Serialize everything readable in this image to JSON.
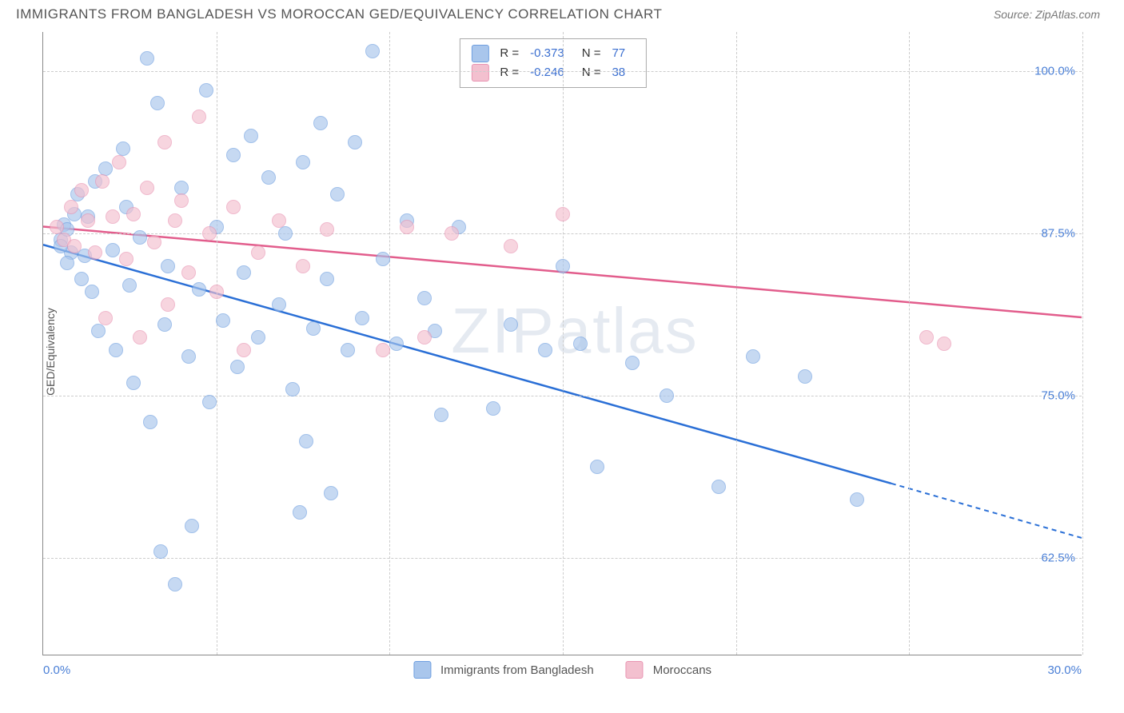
{
  "header": {
    "title": "IMMIGRANTS FROM BANGLADESH VS MOROCCAN GED/EQUIVALENCY CORRELATION CHART",
    "source": "Source: ZipAtlas.com"
  },
  "watermark": {
    "zip": "ZIP",
    "atlas": "atlas"
  },
  "chart": {
    "type": "scatter",
    "xlabel": "",
    "ylabel": "GED/Equivalency",
    "xlim": [
      0,
      30
    ],
    "ylim": [
      55,
      103
    ],
    "y_ticks": [
      62.5,
      75.0,
      87.5,
      100.0
    ],
    "y_tick_labels": [
      "62.5%",
      "75.0%",
      "87.5%",
      "100.0%"
    ],
    "x_ticks": [
      0,
      5,
      10,
      15,
      20,
      25,
      30
    ],
    "x_tick_labels_ends": {
      "left": "0.0%",
      "right": "30.0%"
    },
    "background_color": "#ffffff",
    "grid_color": "#cccccc",
    "axis_color": "#888888",
    "series": [
      {
        "name": "Immigrants from Bangladesh",
        "color_fill": "#a9c6ec",
        "color_stroke": "#6f9fe0",
        "trend_color": "#2a6fd6",
        "R": "-0.373",
        "N": "77",
        "trend": {
          "x1": 0,
          "y1": 86.6,
          "x2_solid": 24.5,
          "y2_solid": 68.2,
          "x2_dash": 30,
          "y2_dash": 64.0
        },
        "points": [
          [
            0.5,
            87.0
          ],
          [
            0.6,
            88.2
          ],
          [
            0.8,
            86.0
          ],
          [
            0.7,
            85.2
          ],
          [
            0.9,
            89.0
          ],
          [
            0.5,
            86.5
          ],
          [
            0.7,
            87.8
          ],
          [
            1.0,
            90.5
          ],
          [
            1.1,
            84.0
          ],
          [
            1.3,
            88.8
          ],
          [
            1.5,
            91.5
          ],
          [
            1.4,
            83.0
          ],
          [
            1.2,
            85.8
          ],
          [
            1.6,
            80.0
          ],
          [
            1.8,
            92.5
          ],
          [
            2.0,
            86.2
          ],
          [
            2.1,
            78.5
          ],
          [
            2.3,
            94.0
          ],
          [
            2.5,
            83.5
          ],
          [
            2.4,
            89.5
          ],
          [
            2.6,
            76.0
          ],
          [
            2.8,
            87.2
          ],
          [
            3.0,
            101.0
          ],
          [
            3.1,
            73.0
          ],
          [
            3.3,
            97.5
          ],
          [
            3.5,
            80.5
          ],
          [
            3.4,
            63.0
          ],
          [
            3.6,
            85.0
          ],
          [
            3.8,
            60.5
          ],
          [
            4.0,
            91.0
          ],
          [
            4.2,
            78.0
          ],
          [
            4.3,
            65.0
          ],
          [
            4.5,
            83.2
          ],
          [
            4.7,
            98.5
          ],
          [
            4.8,
            74.5
          ],
          [
            5.0,
            88.0
          ],
          [
            5.2,
            80.8
          ],
          [
            5.5,
            93.5
          ],
          [
            5.6,
            77.2
          ],
          [
            5.8,
            84.5
          ],
          [
            6.0,
            95.0
          ],
          [
            6.2,
            79.5
          ],
          [
            6.5,
            91.8
          ],
          [
            6.8,
            82.0
          ],
          [
            7.0,
            87.5
          ],
          [
            7.2,
            75.5
          ],
          [
            7.5,
            93.0
          ],
          [
            7.8,
            80.2
          ],
          [
            7.6,
            71.5
          ],
          [
            8.0,
            96.0
          ],
          [
            8.2,
            84.0
          ],
          [
            8.5,
            90.5
          ],
          [
            8.8,
            78.5
          ],
          [
            8.3,
            67.5
          ],
          [
            9.0,
            94.5
          ],
          [
            9.2,
            81.0
          ],
          [
            7.4,
            66.0
          ],
          [
            9.5,
            101.5
          ],
          [
            9.8,
            85.5
          ],
          [
            10.2,
            79.0
          ],
          [
            10.5,
            88.5
          ],
          [
            11.0,
            82.5
          ],
          [
            11.5,
            73.5
          ],
          [
            11.3,
            80.0
          ],
          [
            12.0,
            88.0
          ],
          [
            13.0,
            74.0
          ],
          [
            13.5,
            80.5
          ],
          [
            14.5,
            78.5
          ],
          [
            15.0,
            85.0
          ],
          [
            15.5,
            79.0
          ],
          [
            16.0,
            69.5
          ],
          [
            17.0,
            77.5
          ],
          [
            18.0,
            75.0
          ],
          [
            19.5,
            68.0
          ],
          [
            20.5,
            78.0
          ],
          [
            22.0,
            76.5
          ],
          [
            23.5,
            67.0
          ]
        ]
      },
      {
        "name": "Moroccans",
        "color_fill": "#f3c0cf",
        "color_stroke": "#e995b3",
        "trend_color": "#e25d8c",
        "R": "-0.246",
        "N": "38",
        "trend": {
          "x1": 0,
          "y1": 88.0,
          "x2_solid": 30,
          "y2_solid": 81.0,
          "x2_dash": 30,
          "y2_dash": 81.0
        },
        "points": [
          [
            0.4,
            88.0
          ],
          [
            0.6,
            87.0
          ],
          [
            0.8,
            89.5
          ],
          [
            0.9,
            86.5
          ],
          [
            1.1,
            90.8
          ],
          [
            1.3,
            88.5
          ],
          [
            1.5,
            86.0
          ],
          [
            1.7,
            91.5
          ],
          [
            1.8,
            81.0
          ],
          [
            2.0,
            88.8
          ],
          [
            2.2,
            93.0
          ],
          [
            2.4,
            85.5
          ],
          [
            2.6,
            89.0
          ],
          [
            2.8,
            79.5
          ],
          [
            3.0,
            91.0
          ],
          [
            3.2,
            86.8
          ],
          [
            3.5,
            94.5
          ],
          [
            3.6,
            82.0
          ],
          [
            3.8,
            88.5
          ],
          [
            4.0,
            90.0
          ],
          [
            4.2,
            84.5
          ],
          [
            4.5,
            96.5
          ],
          [
            4.8,
            87.5
          ],
          [
            5.0,
            83.0
          ],
          [
            5.5,
            89.5
          ],
          [
            5.8,
            78.5
          ],
          [
            6.2,
            86.0
          ],
          [
            6.8,
            88.5
          ],
          [
            7.5,
            85.0
          ],
          [
            8.2,
            87.8
          ],
          [
            9.8,
            78.5
          ],
          [
            10.5,
            88.0
          ],
          [
            11.0,
            79.5
          ],
          [
            11.8,
            87.5
          ],
          [
            13.5,
            86.5
          ],
          [
            15.0,
            89.0
          ],
          [
            25.5,
            79.5
          ],
          [
            26.0,
            79.0
          ]
        ]
      }
    ],
    "bottom_legend": [
      {
        "label": "Immigrants from Bangladesh",
        "swatch_fill": "#a9c6ec",
        "swatch_stroke": "#6f9fe0"
      },
      {
        "label": "Moroccans",
        "swatch_fill": "#f3c0cf",
        "swatch_stroke": "#e995b3"
      }
    ]
  }
}
